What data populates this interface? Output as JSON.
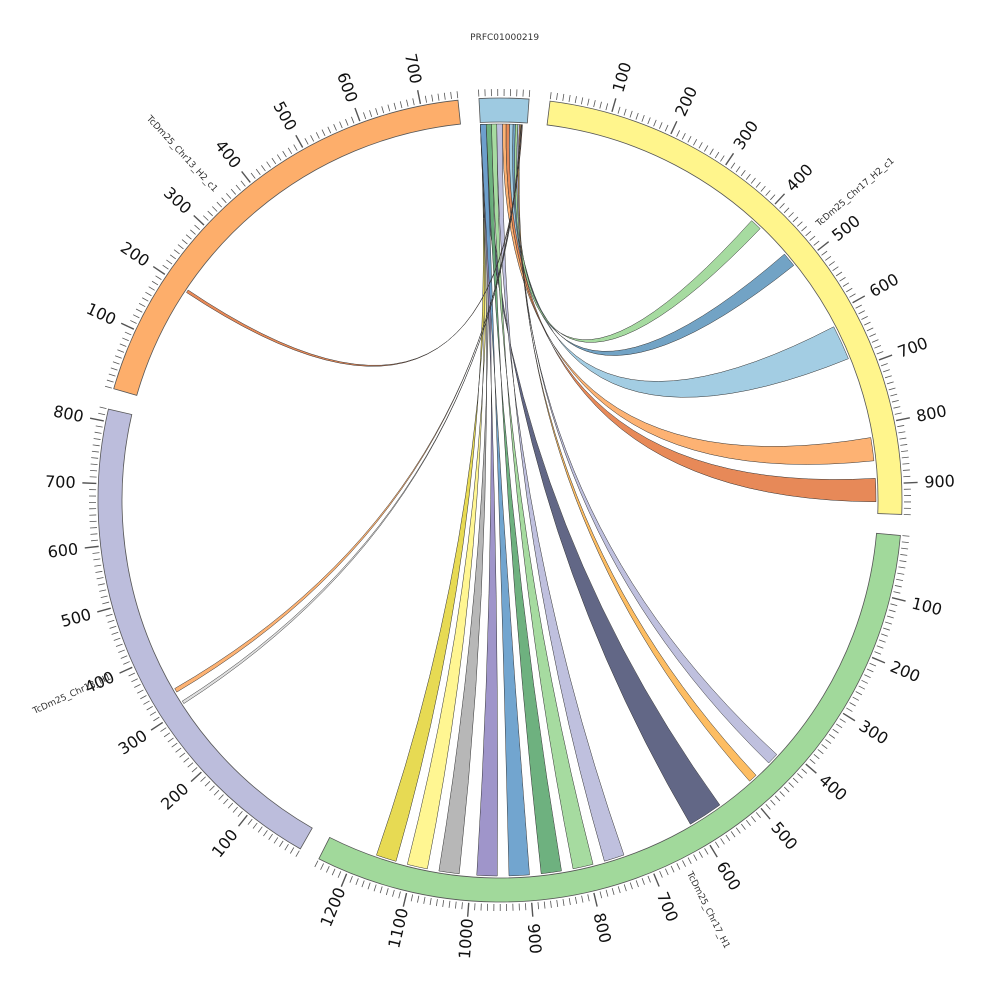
{
  "segments": [
    {
      "id": "prfc",
      "label": "PRFC01000219",
      "length": 80,
      "color": "#9ecae1",
      "tick_labels": []
    },
    {
      "id": "chr17h2",
      "label": "TcDm25_Chr17_H2_c1",
      "length": 950,
      "color": "#fff58c",
      "tick_labels": [
        "100",
        "200",
        "300",
        "400",
        "500",
        "600",
        "700",
        "800",
        "900"
      ]
    },
    {
      "id": "chr17h1",
      "label": "TcDm25_Chr17_H1",
      "length": 1250,
      "color": "#a1d99b",
      "tick_labels": [
        "100",
        "200",
        "300",
        "400",
        "500",
        "600",
        "700",
        "800",
        "900",
        "1000",
        "1100",
        "1200"
      ]
    },
    {
      "id": "chr13h1",
      "label": "TcDm25_Chr13_H1",
      "length": 820,
      "color": "#bcbddc",
      "tick_labels": [
        "100",
        "200",
        "300",
        "400",
        "500",
        "600",
        "700",
        "800"
      ]
    },
    {
      "id": "chr13h2",
      "label": "TcDm25_Chr13_H2_c1",
      "length": 760,
      "color": "#fdae6b",
      "tick_labels": [
        "100",
        "200",
        "300",
        "400",
        "500",
        "600",
        "700"
      ]
    }
  ],
  "links": [
    {
      "source": [
        "prfc",
        0,
        10
      ],
      "target": [
        "chr17h1",
        550,
        610
      ],
      "color": "#5a5f80"
    },
    {
      "source": [
        "prfc",
        0,
        10
      ],
      "target": [
        "chr17h1",
        1130,
        1165
      ],
      "color": "#e6d84a"
    },
    {
      "source": [
        "prfc",
        0,
        10
      ],
      "target": [
        "chr17h1",
        1075,
        1110
      ],
      "color": "#fff58c"
    },
    {
      "source": [
        "prfc",
        0,
        10
      ],
      "target": [
        "chr17h1",
        1020,
        1055
      ],
      "color": "#b3b3b3"
    },
    {
      "source": [
        "prfc",
        0,
        10
      ],
      "target": [
        "chr17h1",
        955,
        990
      ],
      "color": "#9a8fc7"
    },
    {
      "source": [
        "prfc",
        0,
        10
      ],
      "target": [
        "chr17h1",
        900,
        935
      ],
      "color": "#6aa0cc"
    },
    {
      "source": [
        "prfc",
        10,
        19
      ],
      "target": [
        "chr17h1",
        845,
        880
      ],
      "color": "#66ad78"
    },
    {
      "source": [
        "prfc",
        19,
        28
      ],
      "target": [
        "chr17h1",
        790,
        825
      ],
      "color": "#a1d99b"
    },
    {
      "source": [
        "prfc",
        28,
        38
      ],
      "target": [
        "chr17h1",
        735,
        770
      ],
      "color": "#bcbddc"
    },
    {
      "source": [
        "prfc",
        38,
        44
      ],
      "target": [
        "chr17h2",
        820,
        860
      ],
      "color": "#fdae6b"
    },
    {
      "source": [
        "prfc",
        44,
        50
      ],
      "target": [
        "chr17h2",
        890,
        930
      ],
      "color": "#e6834f"
    },
    {
      "source": [
        "prfc",
        50,
        56
      ],
      "target": [
        "chr17h2",
        620,
        680
      ],
      "color": "#9ecae1"
    },
    {
      "source": [
        "prfc",
        56,
        60
      ],
      "target": [
        "chr17h2",
        470,
        495
      ],
      "color": "#6a9ec2"
    },
    {
      "source": [
        "prfc",
        60,
        64
      ],
      "target": [
        "chr17h2",
        390,
        410
      ],
      "color": "#a1d99b"
    },
    {
      "source": [
        "prfc",
        64,
        67
      ],
      "target": [
        "chr17h1",
        420,
        440
      ],
      "color": "#bcbddc"
    },
    {
      "source": [
        "prfc",
        67,
        69
      ],
      "target": [
        "chr17h1",
        470,
        485
      ],
      "color": "#fdb95a"
    },
    {
      "source": [
        "prfc",
        69,
        70
      ],
      "target": [
        "chr13h1",
        330,
        337
      ],
      "color": "#fdae6b"
    },
    {
      "source": [
        "prfc",
        70,
        71
      ],
      "target": [
        "chr13h1",
        307,
        312
      ],
      "color": "#dddddd"
    },
    {
      "source": [
        "prfc",
        71,
        72
      ],
      "target": [
        "chr13h2",
        195,
        200
      ],
      "color": "#e6834f"
    }
  ]
}
